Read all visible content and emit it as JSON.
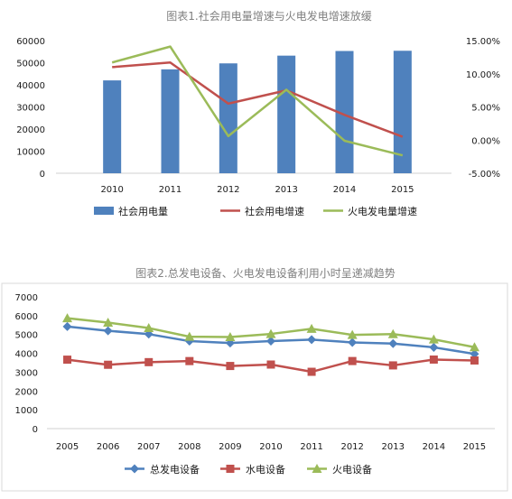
{
  "chart_data": [
    {
      "type": "bar",
      "title": "图表1.社会用电量增速与火电发电增速放缓",
      "categories": [
        "2010",
        "2011",
        "2012",
        "2013",
        "2014",
        "2015"
      ],
      "series": [
        {
          "name": "社会用电量",
          "type": "bar",
          "axis": "left",
          "values": [
            42000,
            47000,
            49700,
            53200,
            55300,
            55400
          ],
          "color": "#4f81bd"
        },
        {
          "name": "社会用电增速",
          "type": "line",
          "axis": "right",
          "values": [
            11.0,
            11.7,
            5.5,
            7.5,
            3.8,
            0.5
          ],
          "color": "#c0504d"
        },
        {
          "name": "火电发电量增速",
          "type": "line",
          "axis": "right",
          "values": [
            11.7,
            14.1,
            0.6,
            7.6,
            -0.1,
            -2.3
          ],
          "color": "#9bbb59"
        }
      ],
      "ylim_left": [
        0,
        60000
      ],
      "left_ticks": [
        "0",
        "10000",
        "20000",
        "30000",
        "40000",
        "50000",
        "60000"
      ],
      "ylim_right": [
        -5,
        15
      ],
      "right_ticks": [
        "-5.00%",
        "0.00%",
        "5.00%",
        "10.00%",
        "15.00%"
      ],
      "legend": "bottom",
      "grid": false
    },
    {
      "type": "line",
      "title": "图表2.总发电设备、火电发电设备利用小时呈递减趋势",
      "categories": [
        "2005",
        "2006",
        "2007",
        "2008",
        "2009",
        "2010",
        "2011",
        "2012",
        "2013",
        "2014",
        "2015"
      ],
      "series": [
        {
          "name": "总发电设备",
          "marker": "diamond",
          "values": [
            5425,
            5198,
            5020,
            4648,
            4546,
            4650,
            4730,
            4579,
            4521,
            4318,
            3969
          ],
          "color": "#4f81bd"
        },
        {
          "name": "水电设备",
          "marker": "square",
          "values": [
            3664,
            3393,
            3532,
            3589,
            3328,
            3404,
            3019,
            3591,
            3359,
            3669,
            3621
          ],
          "color": "#c0504d"
        },
        {
          "name": "火电设备",
          "marker": "triangle",
          "values": [
            5865,
            5633,
            5344,
            4885,
            4865,
            5031,
            5305,
            4982,
            5021,
            4739,
            4329
          ],
          "color": "#9bbb59"
        }
      ],
      "ylim": [
        0,
        7000
      ],
      "y_ticks": [
        "0",
        "1000",
        "2000",
        "3000",
        "4000",
        "5000",
        "6000",
        "7000"
      ],
      "legend": "bottom",
      "grid": false
    }
  ]
}
